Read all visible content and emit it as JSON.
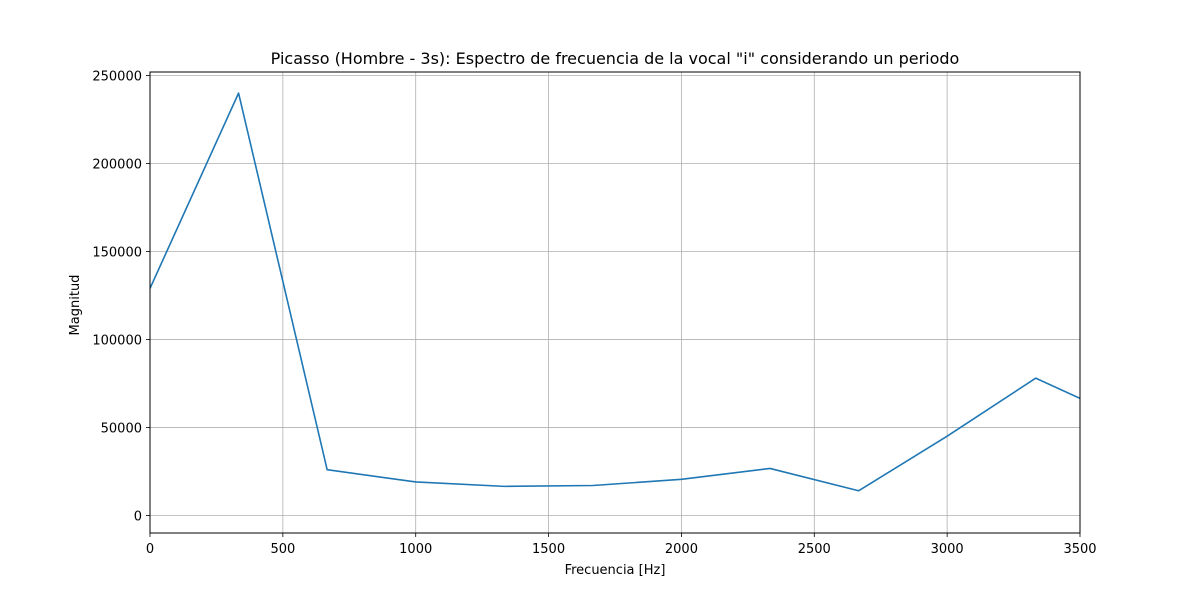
{
  "chart_data": {
    "type": "line",
    "title": "Picasso (Hombre - 3s): Espectro de frecuencia de la vocal \"i\" considerando un periodo",
    "xlabel": "Frecuencia [Hz]",
    "ylabel": "Magnitud",
    "xlim": [
      0,
      3500
    ],
    "ylim": [
      -10000,
      252000
    ],
    "xticks": [
      0,
      500,
      1000,
      1500,
      2000,
      2500,
      3000,
      3500
    ],
    "yticks": [
      0,
      50000,
      100000,
      150000,
      200000,
      250000
    ],
    "xtick_labels": [
      "0",
      "500",
      "1000",
      "1500",
      "2000",
      "2500",
      "3000",
      "3500"
    ],
    "ytick_labels": [
      "0",
      "50000",
      "100000",
      "150000",
      "200000",
      "250000"
    ],
    "grid": true,
    "legend": false,
    "series": [
      {
        "color": "#1f77b4",
        "x": [
          0,
          333.3,
          666.7,
          1000,
          1333.3,
          1666.7,
          2000,
          2333.3,
          2666.7,
          3000,
          3333.3,
          3666.7
        ],
        "y": [
          129000,
          240000,
          26000,
          19000,
          16500,
          17000,
          20500,
          26700,
          14000,
          45000,
          78000,
          55000
        ]
      }
    ]
  }
}
